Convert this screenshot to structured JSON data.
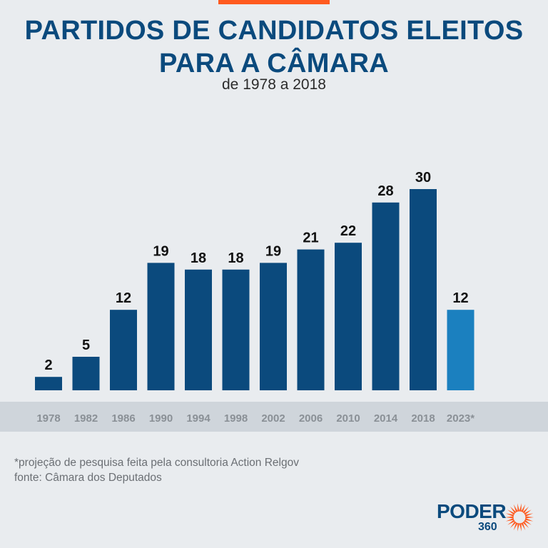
{
  "header": {
    "title": "PARTIDOS DE CANDIDATOS ELEITOS PARA A CÂMARA",
    "subtitle": "de 1978 a 2018"
  },
  "footnotes": {
    "projection": "*projeção de pesquisa feita pela consultoria Action Relgov",
    "source": "fonte: Câmara dos Deputados"
  },
  "logo": {
    "word": "PODER",
    "number": "360"
  },
  "colors": {
    "accent": "#ff5a1f",
    "bar": "#0b4a7d",
    "bar_projection": "#1b80bf",
    "title": "#0b4a7d",
    "axis_band": "#cfd5db",
    "tick_label": "#8a9096"
  },
  "chart_data": {
    "type": "bar",
    "title": "PARTIDOS DE CANDIDATOS ELEITOS PARA A CÂMARA",
    "subtitle": "de 1978 a 2018",
    "xlabel": "",
    "ylabel": "",
    "categories": [
      "1978",
      "1982",
      "1986",
      "1990",
      "1994",
      "1998",
      "2002",
      "2006",
      "2010",
      "2014",
      "2018",
      "2023*"
    ],
    "values": [
      2,
      5,
      12,
      19,
      18,
      18,
      19,
      21,
      22,
      28,
      30,
      12
    ],
    "highlight_category": "2023*",
    "ylim": [
      0,
      30
    ],
    "grid": false,
    "data_labels": true
  }
}
